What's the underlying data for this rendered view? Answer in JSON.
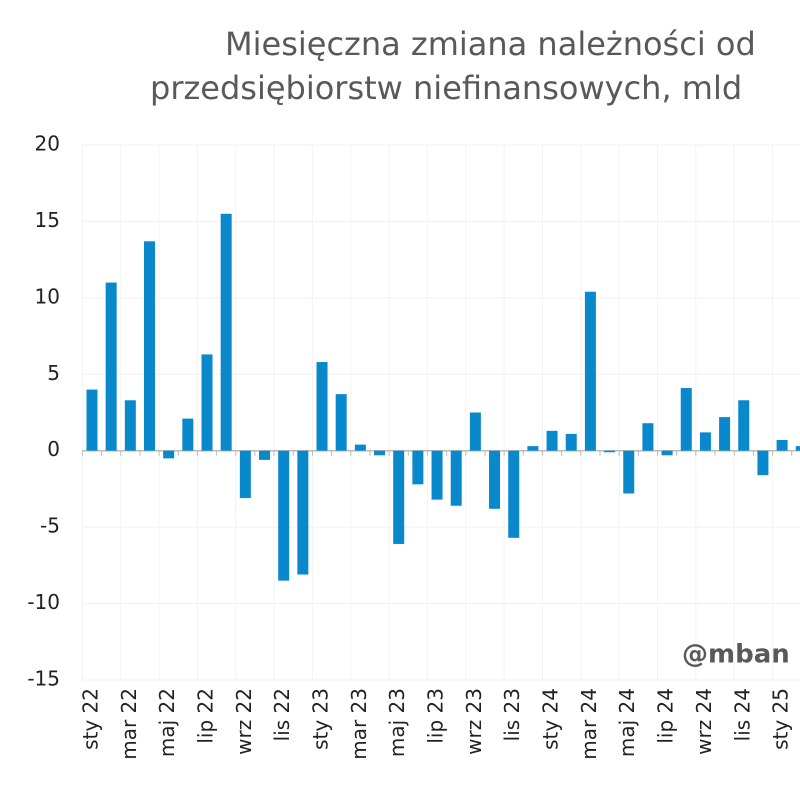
{
  "chart_data": {
    "type": "bar",
    "title": [
      "Miesięczna zmiana należności od",
      "przedsiębiorstw niefinansowych, mld"
    ],
    "watermark": "@mban",
    "categories": [
      "sty 22",
      null,
      "mar 22",
      null,
      "maj 22",
      null,
      "lip 22",
      null,
      "wrz 22",
      null,
      "lis 22",
      null,
      "sty 23",
      null,
      "mar 23",
      null,
      "maj 23",
      null,
      "lip 23",
      null,
      "wrz 23",
      null,
      "lis 23",
      null,
      "sty 24",
      null,
      "mar 24",
      null,
      "maj 24",
      null,
      "lip 24",
      null,
      "wrz 24",
      null,
      "lis 24",
      null,
      "sty 25",
      null
    ],
    "values": [
      4.0,
      11.0,
      3.3,
      13.7,
      -0.5,
      2.1,
      6.3,
      15.5,
      -3.1,
      -0.6,
      -8.5,
      -8.1,
      5.8,
      3.7,
      0.4,
      -0.3,
      -6.1,
      -2.2,
      -3.2,
      -3.6,
      2.5,
      -3.8,
      -5.7,
      0.3,
      1.3,
      1.1,
      10.4,
      -0.1,
      -2.8,
      1.8,
      -0.3,
      4.1,
      1.2,
      2.2,
      3.3,
      -1.6,
      0.7,
      0.3
    ],
    "color": "#0a88cc",
    "ylim": [
      -15,
      20
    ],
    "yticks": [
      -15,
      -10,
      -5,
      0,
      5,
      10,
      15,
      20
    ],
    "grid": true
  }
}
